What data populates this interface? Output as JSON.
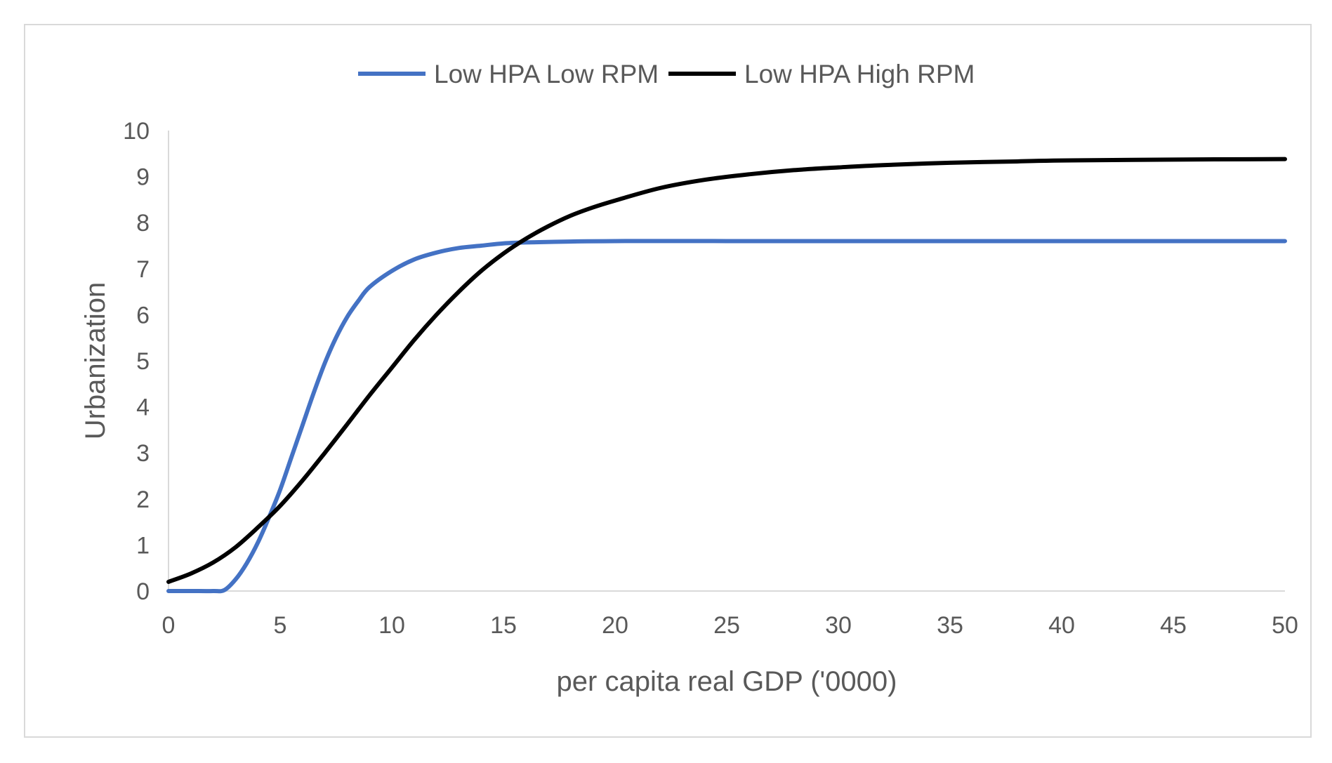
{
  "chart_data": {
    "type": "line",
    "title": "",
    "xlabel": "per capita real GDP ('0000)",
    "ylabel": "Urbanization",
    "xlim": [
      0,
      50
    ],
    "ylim": [
      0,
      10
    ],
    "xticks": [
      0,
      5,
      10,
      15,
      20,
      25,
      30,
      35,
      40,
      45,
      50
    ],
    "yticks": [
      0,
      1,
      2,
      3,
      4,
      5,
      6,
      7,
      8,
      9,
      10
    ],
    "grid": false,
    "legend_position": "top",
    "series": [
      {
        "name": "Low HPA Low RPM",
        "color": "#4472c4",
        "x": [
          0,
          1,
          2,
          2.5,
          3,
          3.5,
          4,
          4.5,
          5,
          5.5,
          6,
          6.5,
          7,
          7.5,
          8,
          8.5,
          9,
          10,
          11,
          12,
          13,
          14,
          15,
          16,
          18,
          20,
          25,
          30,
          35,
          40,
          45,
          50
        ],
        "y": [
          0,
          0,
          0,
          0.02,
          0.25,
          0.6,
          1.05,
          1.6,
          2.2,
          2.9,
          3.6,
          4.3,
          4.95,
          5.5,
          5.95,
          6.3,
          6.6,
          6.95,
          7.2,
          7.35,
          7.45,
          7.5,
          7.55,
          7.57,
          7.59,
          7.6,
          7.6,
          7.6,
          7.6,
          7.6,
          7.6,
          7.6
        ]
      },
      {
        "name": "Low HPA High RPM",
        "color": "#000000",
        "x": [
          0,
          1,
          2,
          3,
          4,
          5,
          6,
          7,
          8,
          9,
          10,
          11,
          12,
          13,
          14,
          15,
          16,
          17,
          18,
          19,
          20,
          22,
          24,
          26,
          28,
          30,
          32,
          35,
          38,
          40,
          45,
          50
        ],
        "y": [
          0.2,
          0.38,
          0.62,
          0.95,
          1.38,
          1.85,
          2.4,
          3.0,
          3.62,
          4.25,
          4.85,
          5.45,
          6.0,
          6.5,
          6.95,
          7.33,
          7.65,
          7.92,
          8.15,
          8.33,
          8.48,
          8.75,
          8.93,
          9.05,
          9.14,
          9.2,
          9.25,
          9.3,
          9.33,
          9.35,
          9.37,
          9.38
        ]
      }
    ]
  }
}
